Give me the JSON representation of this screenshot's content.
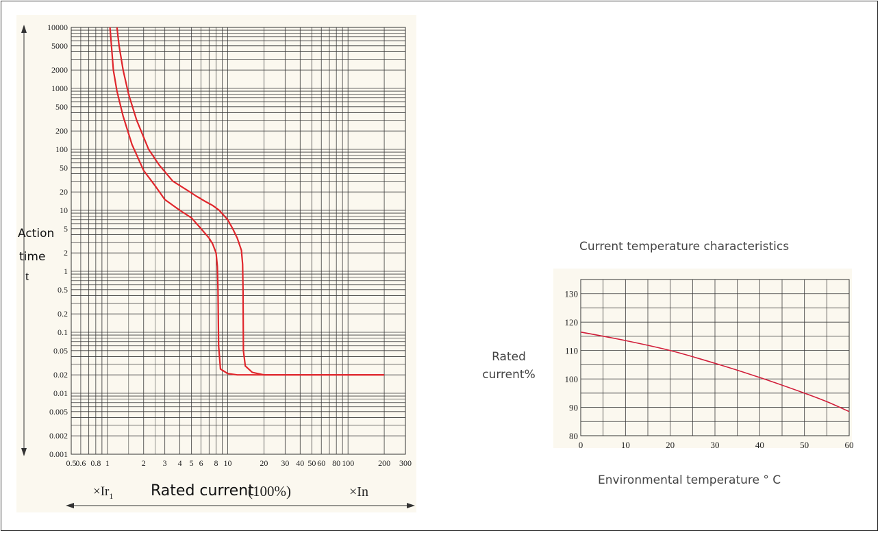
{
  "chart_data": [
    {
      "type": "line",
      "xscale": "log",
      "yscale": "log",
      "xlabel": "Rated current",
      "xlabel_unit": "(100%)",
      "xlabel_left": "×Ir",
      "xlabel_left_sub": "1",
      "xlabel_right": "×In",
      "ylabel_lines": [
        "Action",
        "time",
        "t"
      ],
      "xlim": [
        0.5,
        300
      ],
      "ylim": [
        0.001,
        10000
      ],
      "x_ticks": [
        {
          "v": 0.5,
          "t": "0.5"
        },
        {
          "v": 0.6,
          "t": "0.6"
        },
        {
          "v": 0.8,
          "t": "0.8"
        },
        {
          "v": 1,
          "t": "1"
        },
        {
          "v": 2,
          "t": "2"
        },
        {
          "v": 3,
          "t": "3"
        },
        {
          "v": 4,
          "t": "4"
        },
        {
          "v": 5,
          "t": "5"
        },
        {
          "v": 6,
          "t": "6"
        },
        {
          "v": 8,
          "t": "8"
        },
        {
          "v": 10,
          "t": "10"
        },
        {
          "v": 20,
          "t": "20"
        },
        {
          "v": 30,
          "t": "30"
        },
        {
          "v": 40,
          "t": "40"
        },
        {
          "v": 50,
          "t": "50"
        },
        {
          "v": 60,
          "t": "60"
        },
        {
          "v": 80,
          "t": "80"
        },
        {
          "v": 100,
          "t": "100"
        },
        {
          "v": 200,
          "t": "200"
        },
        {
          "v": 300,
          "t": "300"
        }
      ],
      "y_ticks": [
        {
          "v": 10000,
          "t": "10000"
        },
        {
          "v": 5000,
          "t": "5000"
        },
        {
          "v": 2000,
          "t": "2000"
        },
        {
          "v": 1000,
          "t": "1000"
        },
        {
          "v": 500,
          "t": "500"
        },
        {
          "v": 200,
          "t": "200"
        },
        {
          "v": 100,
          "t": "100"
        },
        {
          "v": 50,
          "t": "50"
        },
        {
          "v": 20,
          "t": "20"
        },
        {
          "v": 10,
          "t": "10"
        },
        {
          "v": 5,
          "t": "5"
        },
        {
          "v": 2,
          "t": "2"
        },
        {
          "v": 1,
          "t": "1"
        },
        {
          "v": 0.5,
          "t": "0.5"
        },
        {
          "v": 0.2,
          "t": "0.2"
        },
        {
          "v": 0.1,
          "t": "0.1"
        },
        {
          "v": 0.05,
          "t": "0.05"
        },
        {
          "v": 0.02,
          "t": "0.02"
        },
        {
          "v": 0.01,
          "t": "0.01"
        },
        {
          "v": 0.005,
          "t": "0.005"
        },
        {
          "v": 0.002,
          "t": "0.002"
        },
        {
          "v": 0.001,
          "t": "0.001"
        }
      ],
      "series": [
        {
          "color": "#e0262c",
          "x": [
            1.05,
            1.08,
            1.12,
            1.2,
            1.35,
            1.6,
            2.0,
            2.5,
            3.0,
            4.0,
            5.0,
            6.0,
            7.0,
            7.5,
            8.0,
            8.2,
            8.3,
            8.4,
            8.7,
            10,
            12,
            15,
            25,
            50,
            100,
            200
          ],
          "y": [
            10000,
            5000,
            2000,
            900,
            350,
            120,
            45,
            25,
            15,
            10,
            7.5,
            5,
            3.5,
            2.8,
            2.0,
            1.2,
            0.5,
            0.06,
            0.025,
            0.021,
            0.02,
            0.02,
            0.02,
            0.02,
            0.02,
            0.02
          ]
        },
        {
          "color": "#e0262c",
          "x": [
            1.2,
            1.25,
            1.35,
            1.5,
            1.75,
            2.2,
            2.7,
            3.5,
            4.5,
            5.5,
            6.5,
            7.5,
            8.5,
            10,
            11,
            12,
            13,
            13.3,
            13.4,
            13.5,
            14,
            16,
            20,
            30,
            100,
            200
          ],
          "y": [
            10000,
            5000,
            2000,
            800,
            300,
            100,
            55,
            30,
            22,
            17,
            14,
            12,
            10,
            7,
            5,
            3.5,
            2.2,
            1.3,
            0.5,
            0.05,
            0.028,
            0.022,
            0.02,
            0.02,
            0.02,
            0.02
          ]
        }
      ]
    },
    {
      "type": "line",
      "title": "Current temperature characteristics",
      "xlabel": "Environmental temperature ° C",
      "ylabel_lines": [
        "Rated",
        "current%"
      ],
      "xlim": [
        0,
        60
      ],
      "ylim": [
        80,
        135
      ],
      "x_ticks": [
        0,
        10,
        20,
        30,
        40,
        50,
        60
      ],
      "y_ticks": [
        80,
        90,
        100,
        110,
        120,
        130
      ],
      "series": [
        {
          "color": "#d11e3a",
          "x": [
            0,
            10,
            20,
            30,
            40,
            50,
            55,
            60
          ],
          "y": [
            116.5,
            113.5,
            110,
            105.5,
            100.5,
            95,
            92,
            88.5
          ]
        }
      ]
    }
  ]
}
